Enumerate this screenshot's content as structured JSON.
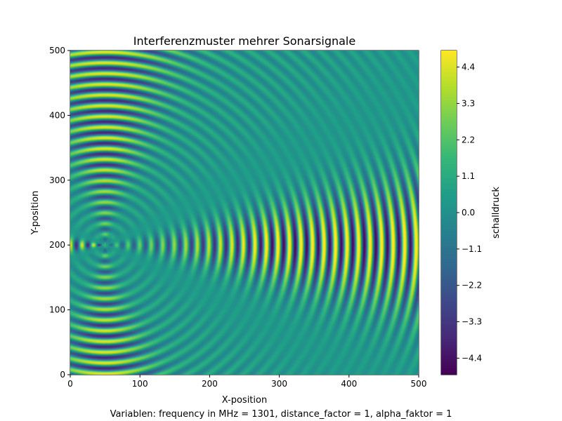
{
  "chart_data": {
    "type": "heatmap",
    "title": "Interferenzmuster mehrer Sonarsignale",
    "xlabel": "X-position",
    "ylabel": "Y-position",
    "xlim": [
      0,
      500
    ],
    "ylim": [
      0,
      500
    ],
    "x_ticks": [
      0,
      100,
      200,
      300,
      400,
      500
    ],
    "y_ticks": [
      0,
      100,
      200,
      300,
      400,
      500
    ],
    "colormap": "viridis",
    "source_marker": {
      "x": 50,
      "y": 200,
      "color": "#ff0000"
    },
    "colorbar": {
      "label": "schalldruck",
      "range": [
        -4.9,
        4.9
      ],
      "ticks": [
        4.4,
        3.3,
        2.2,
        1.1,
        0.0,
        -1.1,
        -2.2,
        -3.3,
        -4.4
      ],
      "tick_labels": [
        "4.4",
        "3.3",
        "2.2",
        "1.1",
        "0.0",
        "−1.1",
        "−2.2",
        "−3.3",
        "−4.4"
      ]
    },
    "grid": false
  },
  "caption": "Variablen: frequency in MHz = 1301, distance_factor = 1, alpha_faktor = 1"
}
